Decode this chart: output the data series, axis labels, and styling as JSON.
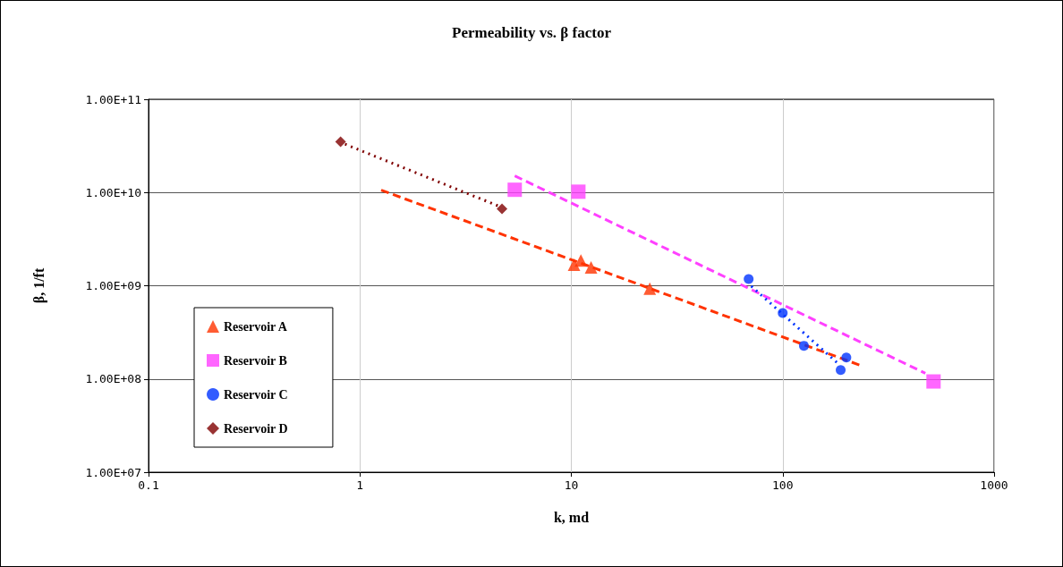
{
  "chart_data": {
    "type": "scatter",
    "title": "Permeability vs. β factor",
    "xlabel": "k, md",
    "ylabel": "β, 1/ft",
    "log": "xy",
    "grid": true,
    "legend": "left",
    "xlim": [
      0.1,
      1000
    ],
    "xticks": [
      0.1,
      1,
      10,
      100,
      1000
    ],
    "ylim": [
      10000000,
      100000000000
    ],
    "yticks": [
      {
        "value": 10000000,
        "label": "1.00E+07"
      },
      {
        "value": 100000000,
        "label": "1.00E+08"
      },
      {
        "value": 1000000000,
        "label": "1.00E+09"
      },
      {
        "value": 10000000000,
        "label": "1.00E+10"
      },
      {
        "value": 100000000000,
        "label": "1.00E+11"
      }
    ],
    "series": [
      {
        "name": "Reservoir A",
        "color": "#ff3300",
        "marker": "triangle",
        "x": [
          10.3,
          11.1,
          12.4,
          23.5
        ],
        "values": [
          1680000000,
          1870000000,
          1570000000,
          930000000
        ]
      },
      {
        "name": "Reservoir B",
        "color": "#ff40ff",
        "marker": "square",
        "x": [
          5.4,
          10.8,
          517
        ],
        "values": [
          10700000000,
          10200000000,
          94000000
        ]
      },
      {
        "name": "Reservoir C",
        "color": "#0033ff",
        "marker": "circle",
        "x": [
          69,
          100,
          126,
          200,
          188
        ],
        "values": [
          1180000000,
          510000000,
          227000000,
          170000000,
          125000000
        ]
      },
      {
        "name": "Reservoir D",
        "color": "#800000",
        "marker": "diamond",
        "x": [
          0.81,
          4.7
        ],
        "values": [
          35000000000,
          6700000000
        ]
      },
      {
        "type": "line",
        "color": "#ff3300",
        "marker": "none",
        "line_style": "dashed",
        "x": [
          1.26,
          233
        ],
        "values": [
          10600000000,
          140000000
        ]
      },
      {
        "type": "line",
        "color": "#ff40ff",
        "marker": "none",
        "line_style": "dashed",
        "x": [
          5.4,
          473
        ],
        "values": [
          15100000000,
          115000000
        ]
      },
      {
        "type": "line",
        "color": "#0033ff",
        "marker": "none",
        "line_style": "dotted",
        "x": [
          71,
          183
        ],
        "values": [
          990000000,
          146000000
        ]
      },
      {
        "type": "line",
        "color": "#800000",
        "marker": "none",
        "line_style": "dotted",
        "x": [
          0.85,
          4.5
        ],
        "values": [
          33000000000,
          7200000000
        ]
      }
    ]
  }
}
